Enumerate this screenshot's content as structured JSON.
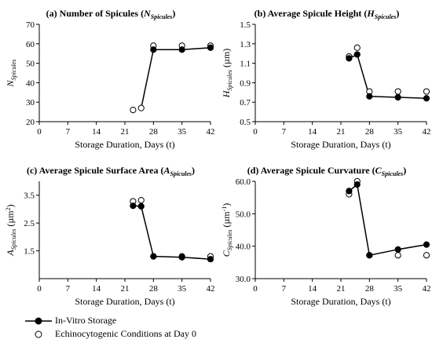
{
  "legend": {
    "items": [
      {
        "label": "In-Vitro Storage",
        "style": "line-filled"
      },
      {
        "label": "Echinocytogenic Conditions at Day 0",
        "style": "open"
      }
    ]
  },
  "chart_data": [
    {
      "type": "line",
      "title": {
        "prefix": "(a) Number of Spicules (",
        "var": "N",
        "sub": "Spicules",
        "suffix": ")"
      },
      "ylabel": {
        "var": "N",
        "sub": "Spicules",
        "unit": "",
        "unit_sup": ""
      },
      "xlabel": "Storage Duration, Days (t)",
      "xlim": [
        0,
        42
      ],
      "ylim": [
        20,
        70
      ],
      "xticks": [
        0,
        7,
        14,
        21,
        28,
        35,
        42
      ],
      "yticks": [
        20,
        30,
        40,
        50,
        60,
        70
      ],
      "ytick_labels": [
        "20",
        "30",
        "40",
        "50",
        "60",
        "70"
      ],
      "series": [
        {
          "marker": "filled",
          "line": true,
          "x": [
            28,
            35,
            42
          ],
          "y": [
            57,
            57,
            58
          ]
        },
        {
          "marker": "open",
          "line": false,
          "x": [
            23,
            25,
            28,
            35,
            42
          ],
          "y": [
            26,
            27,
            59,
            59,
            59
          ]
        }
      ],
      "connector": {
        "x": [
          25,
          28
        ],
        "y": [
          27,
          57
        ]
      }
    },
    {
      "type": "line",
      "title": {
        "prefix": "(b) Average Spicule Height (",
        "var": "H",
        "sub": "Spicules",
        "suffix": ")"
      },
      "ylabel": {
        "var": "H",
        "sub": "Spicules",
        "unit": " (µm)",
        "unit_sup": ""
      },
      "xlabel": "Storage Duration, Days (t)",
      "xlim": [
        0,
        42
      ],
      "ylim": [
        0.5,
        1.5
      ],
      "xticks": [
        0,
        7,
        14,
        21,
        28,
        35,
        42
      ],
      "yticks": [
        0.5,
        0.7,
        0.9,
        1.1,
        1.3,
        1.5
      ],
      "ytick_labels": [
        "0.5",
        "0.7",
        "0.9",
        "1.1",
        "1.3",
        "1.5"
      ],
      "series": [
        {
          "marker": "filled",
          "line": true,
          "x": [
            23,
            25,
            28,
            35,
            42
          ],
          "y": [
            1.15,
            1.19,
            0.76,
            0.75,
            0.74
          ]
        },
        {
          "marker": "open",
          "line": false,
          "x": [
            23,
            25,
            28,
            35,
            42
          ],
          "y": [
            1.17,
            1.26,
            0.81,
            0.81,
            0.81
          ]
        }
      ]
    },
    {
      "type": "line",
      "title": {
        "prefix": "(c) Average Spicule Surface Area (",
        "var": "A",
        "sub": "Spicules",
        "suffix": ")"
      },
      "ylabel": {
        "var": "A",
        "sub": "Spicules",
        "unit": " (µm",
        "unit_sup": "2",
        "unit_close": ")"
      },
      "xlabel": "Storage Duration, Days (t)",
      "xlim": [
        0,
        42
      ],
      "ylim": [
        0.5,
        4.0
      ],
      "xticks": [
        0,
        7,
        14,
        21,
        28,
        35,
        42
      ],
      "yticks": [
        1.5,
        2.5,
        3.5
      ],
      "ytick_labels": [
        "1.5",
        "2.5",
        "3.5"
      ],
      "series": [
        {
          "marker": "filled",
          "line": true,
          "x": [
            23,
            25,
            28,
            35,
            42
          ],
          "y": [
            3.12,
            3.1,
            1.3,
            1.27,
            1.2
          ]
        },
        {
          "marker": "open",
          "line": false,
          "x": [
            23,
            25,
            28,
            35,
            42
          ],
          "y": [
            3.28,
            3.32,
            1.3,
            1.3,
            1.3
          ]
        }
      ]
    },
    {
      "type": "line",
      "title": {
        "prefix": "(d) Average Spicule Curvature (",
        "var": "C",
        "sub": "Spicules",
        "suffix": ")"
      },
      "ylabel": {
        "var": "C",
        "sub": "Spicules",
        "unit": " (µm",
        "unit_sup": "-1",
        "unit_close": ")"
      },
      "xlabel": "Storage Duration, Days (t)",
      "xlim": [
        0,
        42
      ],
      "ylim": [
        30,
        60
      ],
      "xticks": [
        0,
        7,
        14,
        21,
        28,
        35,
        42
      ],
      "yticks": [
        30,
        40,
        50,
        60
      ],
      "ytick_labels": [
        "30.0",
        "40.0",
        "50.0",
        "60.0"
      ],
      "series": [
        {
          "marker": "filled",
          "line": true,
          "x": [
            23,
            25,
            28,
            35,
            42
          ],
          "y": [
            57,
            59,
            37.2,
            39,
            40.5
          ]
        },
        {
          "marker": "open",
          "line": false,
          "x": [
            23,
            25,
            28,
            35,
            42
          ],
          "y": [
            56,
            60,
            37.2,
            37.2,
            37.2
          ]
        }
      ]
    }
  ]
}
